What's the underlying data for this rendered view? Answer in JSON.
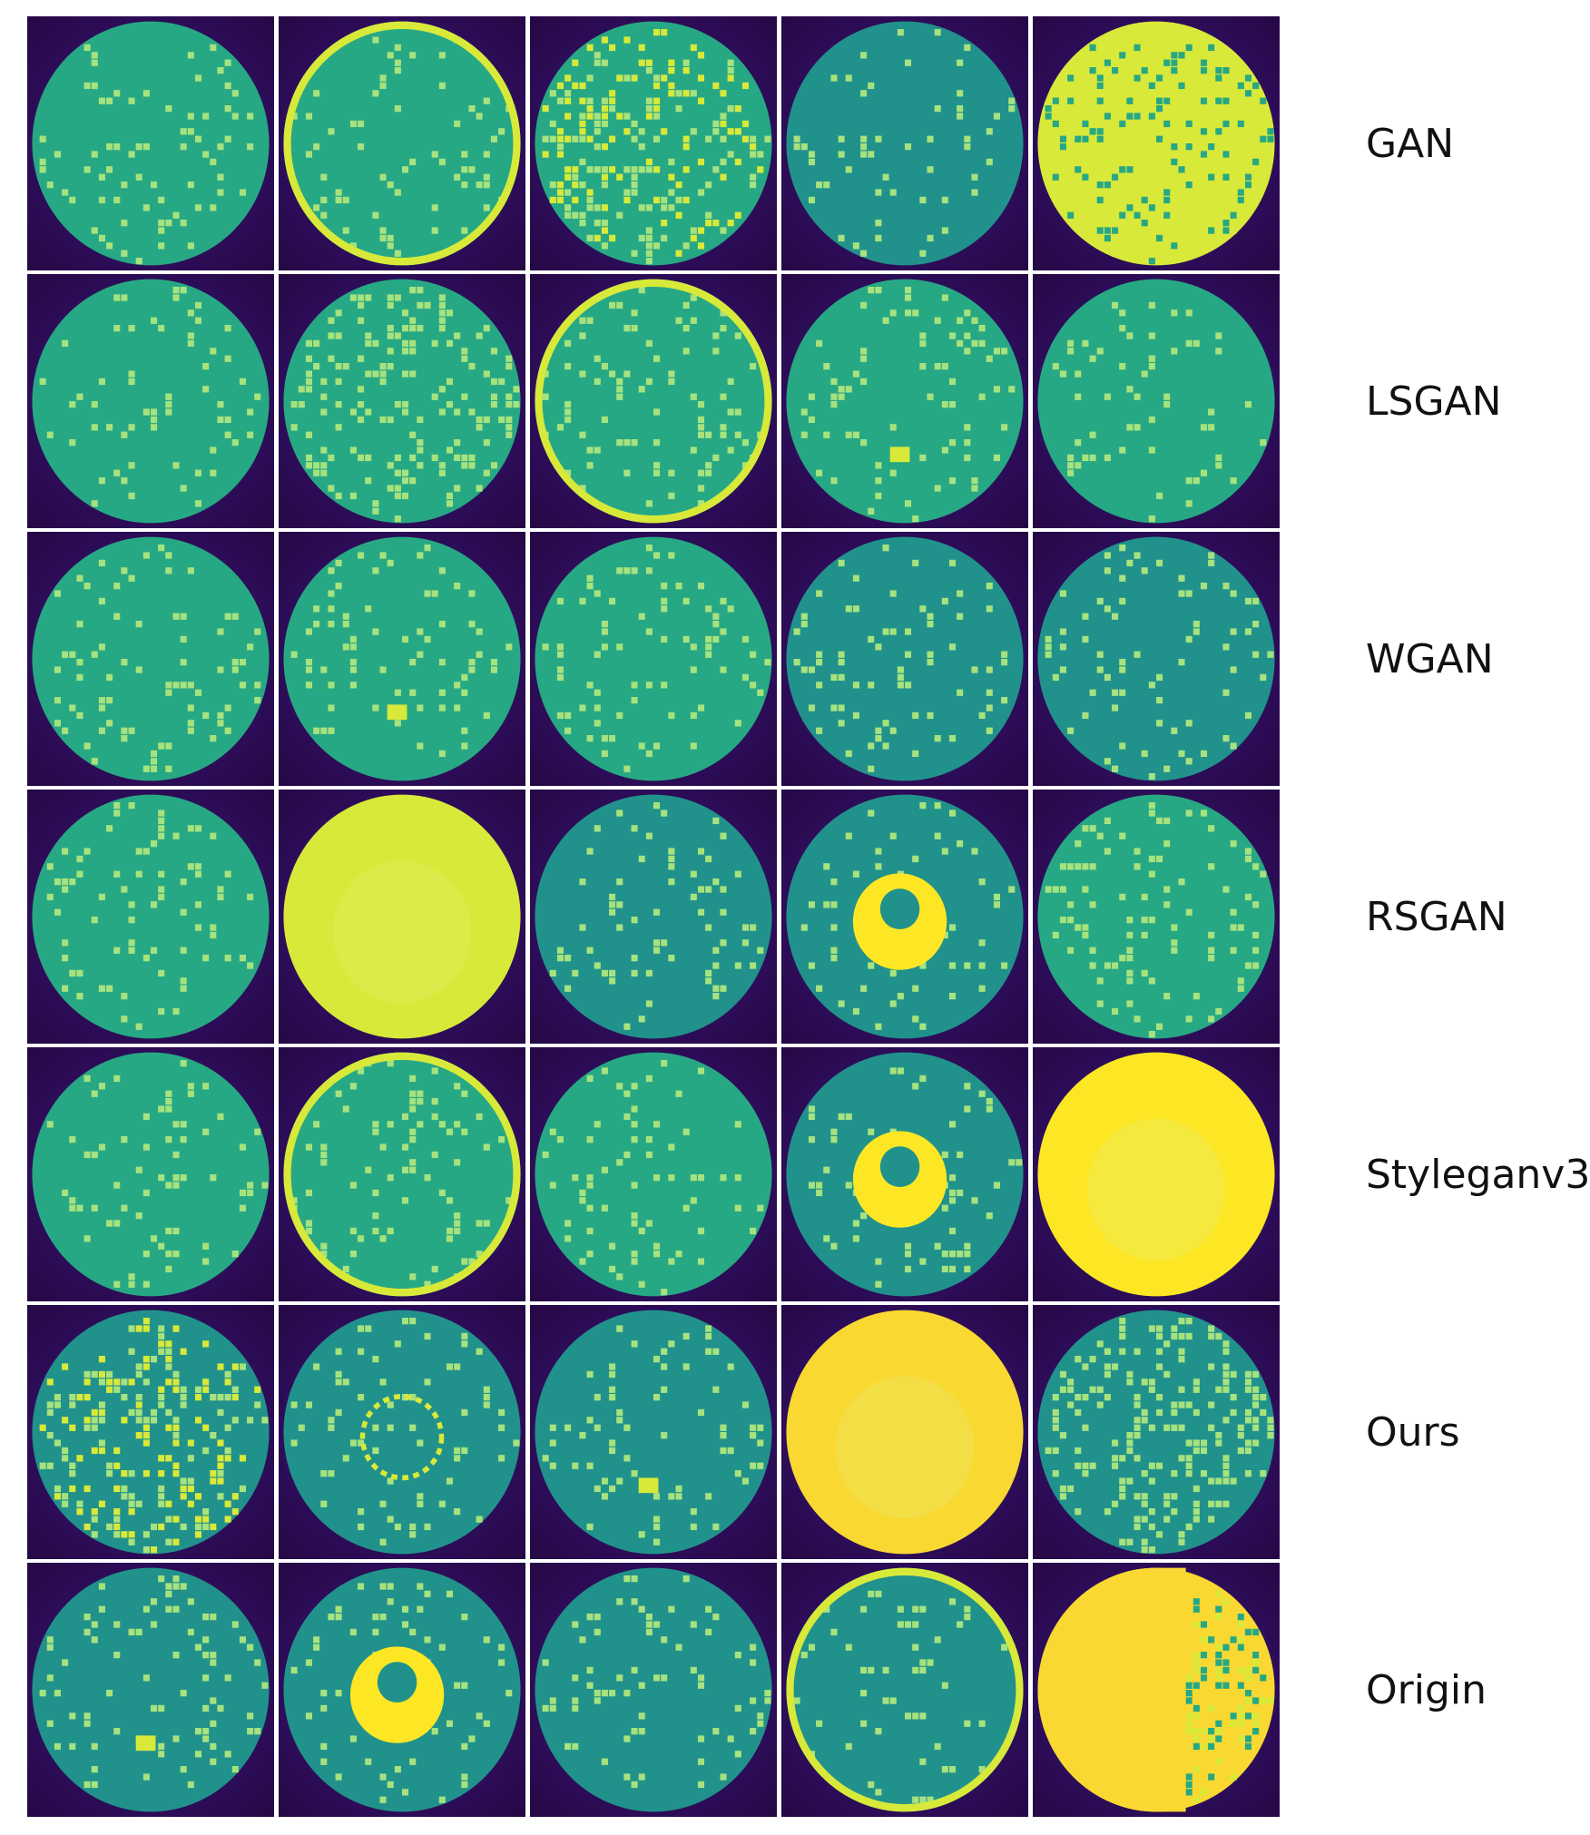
{
  "colors": {
    "background": "#2e0e5c",
    "teal": "#21918c",
    "green": "#27a884",
    "light_green": "#a6e27e",
    "yellow_green": "#d8e93a",
    "yellow": "#fde725",
    "gold": "#f9d832"
  },
  "rows": [
    {
      "label": "GAN",
      "tiles": [
        {
          "base": "green",
          "pattern": "speckle"
        },
        {
          "base": "green",
          "pattern": "edge-ring"
        },
        {
          "base": "green",
          "pattern": "blotchy"
        },
        {
          "base": "teal",
          "pattern": "speckle"
        },
        {
          "base": "yellow_green",
          "pattern": "blotchy"
        }
      ]
    },
    {
      "label": "LSGAN",
      "tiles": [
        {
          "base": "green",
          "pattern": "speckle"
        },
        {
          "base": "green",
          "pattern": "dense-speckle"
        },
        {
          "base": "green",
          "pattern": "edge-ring"
        },
        {
          "base": "green",
          "pattern": "center-spot"
        },
        {
          "base": "green",
          "pattern": "speckle"
        }
      ]
    },
    {
      "label": "WGAN",
      "tiles": [
        {
          "base": "green",
          "pattern": "speckle"
        },
        {
          "base": "green",
          "pattern": "center-spot"
        },
        {
          "base": "green",
          "pattern": "speckle"
        },
        {
          "base": "teal",
          "pattern": "speckle"
        },
        {
          "base": "teal",
          "pattern": "speckle"
        }
      ]
    },
    {
      "label": "RSGAN",
      "tiles": [
        {
          "base": "green",
          "pattern": "speckle"
        },
        {
          "base": "yellow_green",
          "pattern": "solid"
        },
        {
          "base": "teal",
          "pattern": "speckle"
        },
        {
          "base": "teal",
          "pattern": "donut"
        },
        {
          "base": "green",
          "pattern": "speckle"
        }
      ]
    },
    {
      "label": "Styleganv3",
      "tiles": [
        {
          "base": "green",
          "pattern": "speckle"
        },
        {
          "base": "green",
          "pattern": "edge-ring"
        },
        {
          "base": "green",
          "pattern": "speckle"
        },
        {
          "base": "teal",
          "pattern": "donut"
        },
        {
          "base": "yellow",
          "pattern": "solid"
        }
      ]
    },
    {
      "label": "Ours",
      "tiles": [
        {
          "base": "teal",
          "pattern": "blotchy"
        },
        {
          "base": "teal",
          "pattern": "inner-ring"
        },
        {
          "base": "teal",
          "pattern": "center-spot"
        },
        {
          "base": "gold",
          "pattern": "solid"
        },
        {
          "base": "teal",
          "pattern": "dense-speckle"
        }
      ]
    },
    {
      "label": "Origin",
      "tiles": [
        {
          "base": "teal",
          "pattern": "center-spot"
        },
        {
          "base": "teal",
          "pattern": "donut"
        },
        {
          "base": "teal",
          "pattern": "speckle"
        },
        {
          "base": "teal",
          "pattern": "edge-ring"
        },
        {
          "base": "gold",
          "pattern": "half-blotchy"
        }
      ]
    }
  ]
}
